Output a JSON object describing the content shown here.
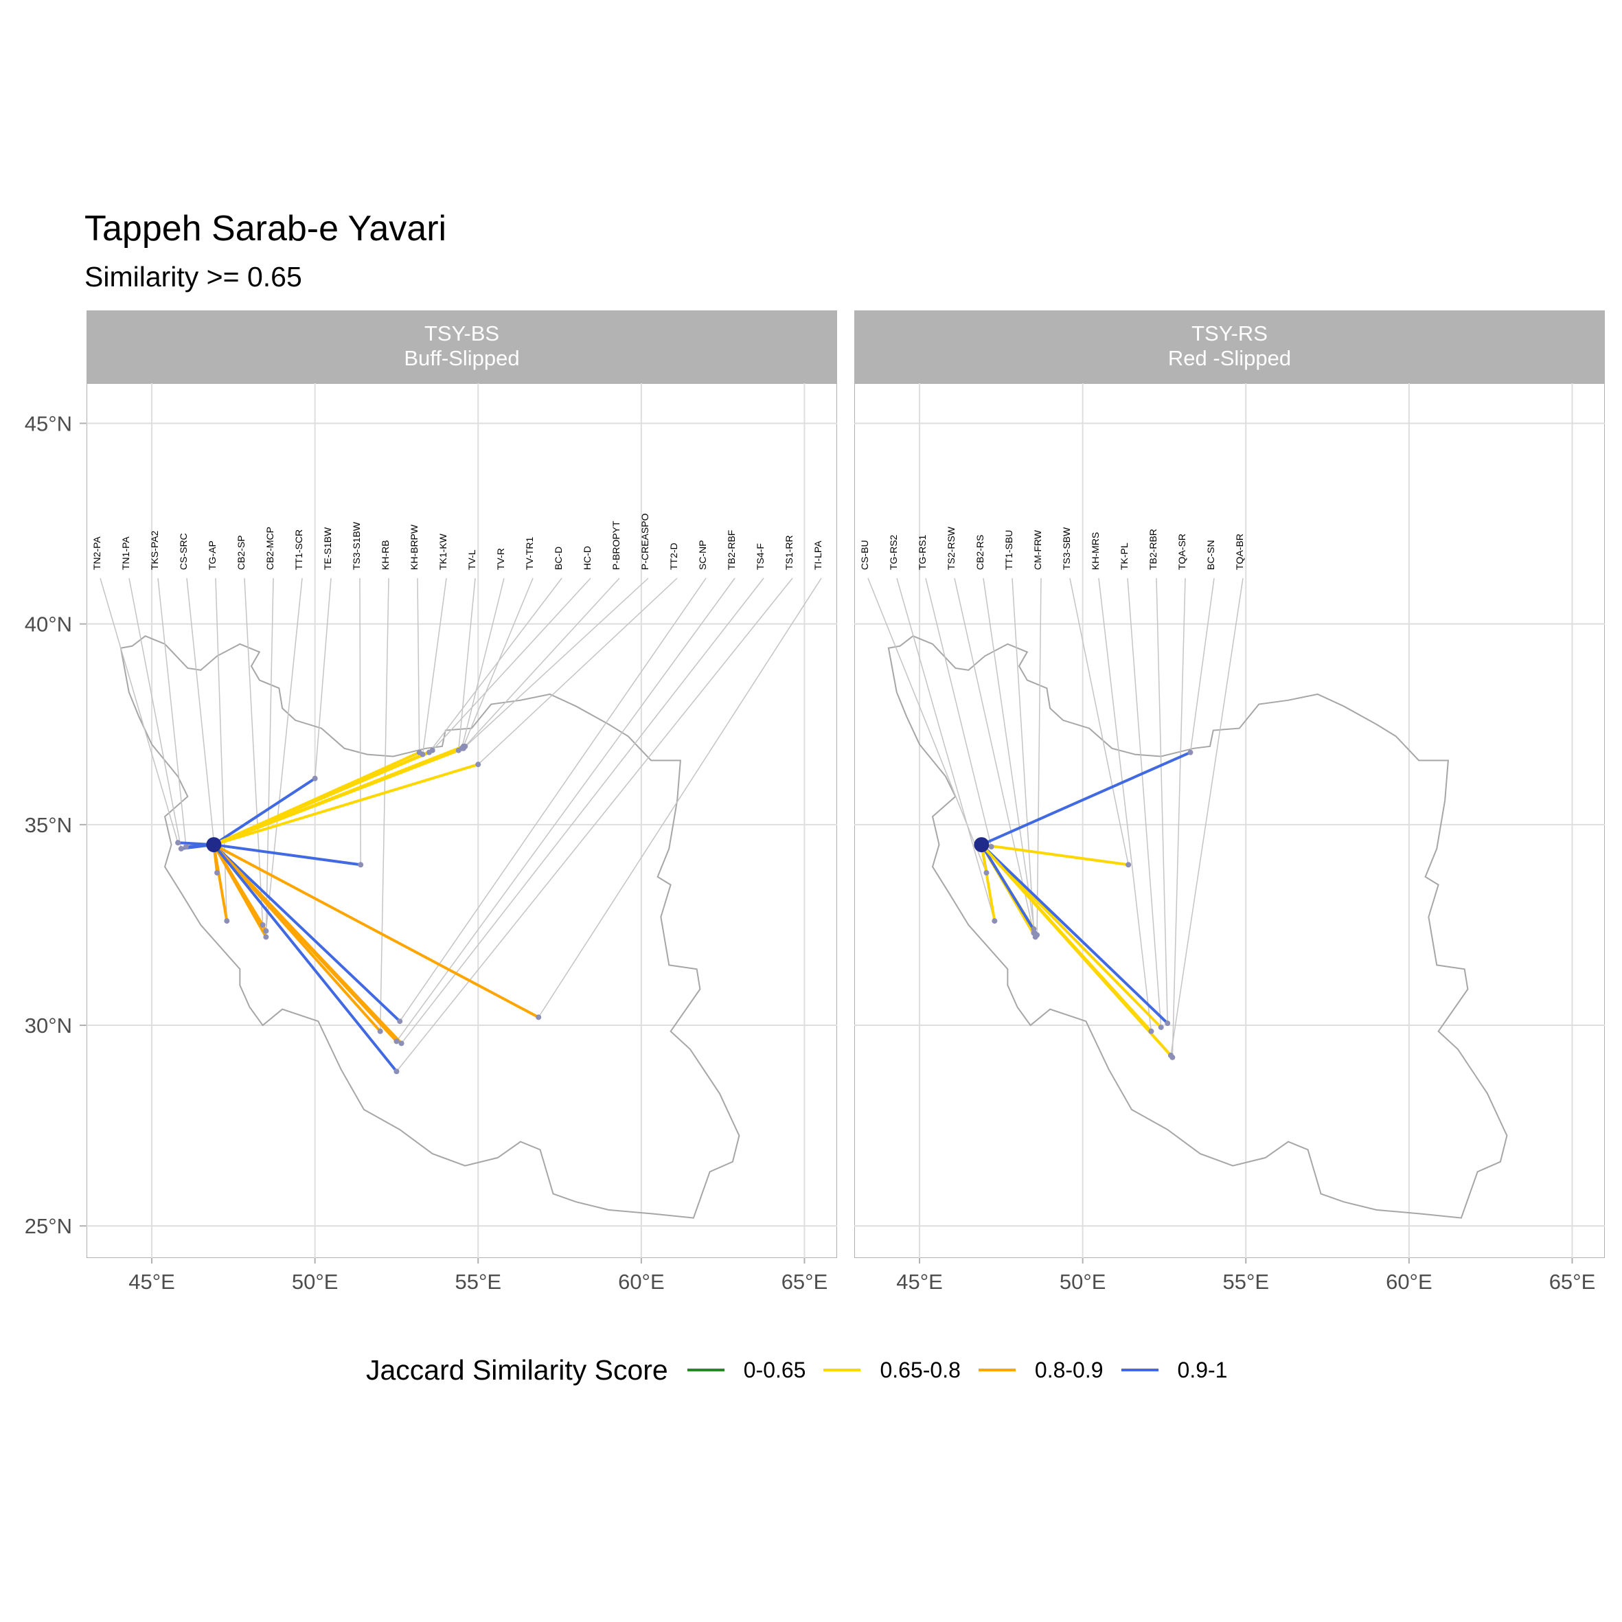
{
  "title": "Tappeh Sarab-e Yavari",
  "subtitle": "Similarity >= 0.65",
  "legend": {
    "title": "Jaccard Similarity Score",
    "items": [
      {
        "label": "0-0.65",
        "color": "#228B22"
      },
      {
        "label": "0.65-0.8",
        "color": "#FFD700"
      },
      {
        "label": "0.8-0.9",
        "color": "#FFA500"
      },
      {
        "label": "0.9-1",
        "color": "#4169E1"
      }
    ]
  },
  "chart_data": {
    "type": "map",
    "xlabel": "",
    "ylabel": "",
    "xlim": [
      43,
      66
    ],
    "ylim": [
      24.2,
      46
    ],
    "x_ticks": [
      45,
      50,
      55,
      60,
      65
    ],
    "x_tick_labels": [
      "45°E",
      "50°E",
      "55°E",
      "60°E",
      "65°E"
    ],
    "y_ticks": [
      25,
      30,
      35,
      40,
      45
    ],
    "y_tick_labels": [
      "25°N",
      "30°N",
      "35°N",
      "40°N",
      "45°N"
    ],
    "grid": true,
    "legend_position": "bottom",
    "origin": {
      "lon": 46.9,
      "lat": 34.5
    },
    "panels": [
      {
        "code": "TSY-BS",
        "name": "Buff-Slipped",
        "links": [
          {
            "site": "TN2-PA",
            "lon": 45.8,
            "lat": 34.55,
            "score": "0.9-1"
          },
          {
            "site": "TN1-PA",
            "lon": 45.9,
            "lat": 34.4,
            "score": "0.9-1"
          },
          {
            "site": "TKS-PA2",
            "lon": 46.05,
            "lat": 34.45,
            "score": "0.9-1"
          },
          {
            "site": "CS-SRC",
            "lon": 47.0,
            "lat": 33.8,
            "score": "0.8-0.9"
          },
          {
            "site": "TG-AP",
            "lon": 47.3,
            "lat": 32.6,
            "score": "0.8-0.9"
          },
          {
            "site": "CB2-SP",
            "lon": 48.4,
            "lat": 32.5,
            "score": "0.8-0.9"
          },
          {
            "site": "CB2-MCP",
            "lon": 48.5,
            "lat": 32.2,
            "score": "0.8-0.9"
          },
          {
            "site": "TT1-SCR",
            "lon": 48.5,
            "lat": 32.35,
            "score": "0.8-0.9"
          },
          {
            "site": "TE-S1BW",
            "lon": 50.0,
            "lat": 36.15,
            "score": "0.9-1"
          },
          {
            "site": "TS3-S1BW",
            "lon": 51.4,
            "lat": 34.0,
            "score": "0.9-1"
          },
          {
            "site": "KH-RB",
            "lon": 52.0,
            "lat": 29.85,
            "score": "0.8-0.9"
          },
          {
            "site": "KH-BRPW",
            "lon": 53.2,
            "lat": 36.8,
            "score": "0.65-0.8"
          },
          {
            "site": "TK1-KW",
            "lon": 53.3,
            "lat": 36.75,
            "score": "0.65-0.8"
          },
          {
            "site": "TV-L",
            "lon": 54.4,
            "lat": 36.85,
            "score": "0.65-0.8"
          },
          {
            "site": "TV-R",
            "lon": 54.5,
            "lat": 36.9,
            "score": "0.65-0.8"
          },
          {
            "site": "TV-TR1",
            "lon": 54.55,
            "lat": 36.95,
            "score": "0.65-0.8"
          },
          {
            "site": "BC-D",
            "lon": 53.5,
            "lat": 36.8,
            "score": "0.65-0.8"
          },
          {
            "site": "HC-D",
            "lon": 53.6,
            "lat": 36.85,
            "score": "0.65-0.8"
          },
          {
            "site": "P-BROPYT",
            "lon": 54.6,
            "lat": 36.95,
            "score": "0.65-0.8"
          },
          {
            "site": "P-CREASPO",
            "lon": 54.55,
            "lat": 36.9,
            "score": "0.65-0.8"
          },
          {
            "site": "TT2-D",
            "lon": 55.0,
            "lat": 36.5,
            "score": "0.65-0.8"
          },
          {
            "site": "SC-NP",
            "lon": 52.6,
            "lat": 30.1,
            "score": "0.9-1"
          },
          {
            "site": "TB2-RBF",
            "lon": 52.5,
            "lat": 29.6,
            "score": "0.8-0.9"
          },
          {
            "site": "TS4-F",
            "lon": 52.65,
            "lat": 29.55,
            "score": "0.8-0.9"
          },
          {
            "site": "TS1-RR",
            "lon": 52.5,
            "lat": 28.85,
            "score": "0.9-1"
          },
          {
            "site": "TI-LPA",
            "lon": 56.85,
            "lat": 30.2,
            "score": "0.8-0.9"
          }
        ]
      },
      {
        "code": "TSY-RS",
        "name": "Red -Slipped",
        "links": [
          {
            "site": "CS-BU",
            "lon": 47.05,
            "lat": 33.8,
            "score": "0.9-1"
          },
          {
            "site": "TG-RS2",
            "lon": 47.3,
            "lat": 32.6,
            "score": "0.65-0.8"
          },
          {
            "site": "TG-RS1",
            "lon": 47.2,
            "lat": 34.45,
            "score": "0.65-0.8"
          },
          {
            "site": "TS2-RSW",
            "lon": 48.5,
            "lat": 32.3,
            "score": "0.65-0.8"
          },
          {
            "site": "CB2-RS",
            "lon": 48.55,
            "lat": 32.2,
            "score": "0.65-0.8"
          },
          {
            "site": "TT1-SBU",
            "lon": 48.5,
            "lat": 32.4,
            "score": "0.65-0.8"
          },
          {
            "site": "CM-FRW",
            "lon": 48.6,
            "lat": 32.25,
            "score": "0.9-1"
          },
          {
            "site": "TS3-SBW",
            "lon": 51.4,
            "lat": 34.0,
            "score": "0.65-0.8"
          },
          {
            "site": "KH-MRS",
            "lon": 52.1,
            "lat": 29.85,
            "score": "0.65-0.8"
          },
          {
            "site": "TK-PL",
            "lon": 52.4,
            "lat": 29.95,
            "score": "0.65-0.8"
          },
          {
            "site": "TB2-RBR",
            "lon": 52.6,
            "lat": 30.05,
            "score": "0.9-1"
          },
          {
            "site": "TQA-SR",
            "lon": 52.75,
            "lat": 29.2,
            "score": "0.65-0.8"
          },
          {
            "site": "BC-SN",
            "lon": 53.3,
            "lat": 36.8,
            "score": "0.9-1"
          },
          {
            "site": "TQA-BR",
            "lon": 52.7,
            "lat": 29.25,
            "score": "0.65-0.8"
          }
        ]
      }
    ]
  }
}
